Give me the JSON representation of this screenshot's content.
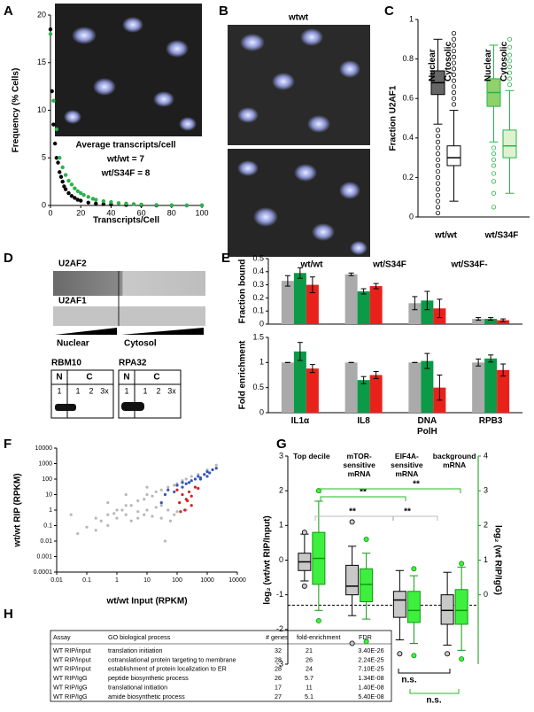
{
  "panel_labels": [
    "A",
    "B",
    "C",
    "D",
    "E",
    "F",
    "G",
    "H"
  ],
  "micrograph": {
    "label": "wtwt"
  },
  "blots": {
    "top": [
      "U2AF2",
      "U2AF1"
    ],
    "fractions": [
      "Nuclear",
      "Cytosol"
    ],
    "bottom": [
      {
        "name": "RBM10",
        "header": [
          "N",
          "C"
        ],
        "lanes": [
          "1",
          "1",
          "2",
          "3x"
        ]
      },
      {
        "name": "RPA32",
        "header": [
          "N",
          "C"
        ],
        "lanes": [
          "1",
          "1",
          "2",
          "3x"
        ]
      }
    ]
  },
  "chart_data": [
    {
      "type": "scatter",
      "ylabel": "Frequency (% Cells)",
      "xlabel": "Transcripts/Cell",
      "xlim": [
        0,
        100
      ],
      "ylim": [
        0,
        20
      ],
      "xticks": [
        0,
        20,
        40,
        60,
        80,
        100
      ],
      "yticks": [
        0,
        5,
        10,
        15,
        20
      ],
      "annotations": [
        {
          "text": "Average transcripts/cell",
          "color": "#000000"
        },
        {
          "text": "wt/wt = 7",
          "color": "#000000"
        },
        {
          "text": "wt/S34F = 8",
          "color": "#2bb24c"
        }
      ],
      "series": [
        {
          "color": "#000000",
          "x": [
            0,
            1,
            2,
            3,
            4,
            5,
            6,
            7,
            8,
            9,
            10,
            12,
            14,
            16,
            18,
            20,
            25,
            30,
            35,
            40,
            50,
            60,
            70,
            80,
            90,
            100
          ],
          "values": [
            18.5,
            12,
            8.5,
            6.5,
            5,
            4.5,
            3.5,
            3,
            2.5,
            2,
            1.7,
            1.3,
            1,
            0.8,
            0.6,
            0.5,
            0.3,
            0.2,
            0.15,
            0.1,
            0.05,
            0.03,
            0,
            0,
            0,
            0
          ]
        },
        {
          "color": "#2bb24c",
          "x": [
            0,
            2,
            4,
            6,
            8,
            10,
            12,
            14,
            16,
            18,
            20,
            22,
            25,
            28,
            30,
            35,
            40,
            45,
            50,
            55,
            60,
            70,
            80,
            90,
            100
          ],
          "values": [
            18,
            11,
            8,
            5,
            4,
            3.2,
            2.6,
            2.2,
            1.8,
            1.5,
            1.3,
            1.1,
            0.9,
            0.7,
            0.6,
            0.45,
            0.35,
            0.25,
            0.2,
            0.15,
            0.1,
            0.05,
            0.02,
            0,
            0
          ]
        }
      ]
    },
    {
      "type": "box",
      "ylabel": "Fraction U2AF1",
      "ylim": [
        0,
        1
      ],
      "yticks": [
        0,
        0.2,
        0.4,
        0.6,
        0.8,
        1
      ],
      "categories": [
        "wt/wt",
        "wt/S34F"
      ],
      "series": [
        {
          "name": "Nuclear",
          "boxes": [
            {
              "color": "#000000",
              "fill": "#666666",
              "whisker_low": 0.47,
              "q1": 0.62,
              "median": 0.68,
              "q3": 0.74,
              "whisker_high": 0.9,
              "outliers": [
                0.02,
                0.05,
                0.08,
                0.11,
                0.14,
                0.17,
                0.2,
                0.23,
                0.26,
                0.29,
                0.32,
                0.35,
                0.38,
                0.41,
                0.44
              ]
            },
            {
              "color": "#2bb24c",
              "fill": "#8fd16a",
              "whisker_low": 0.38,
              "q1": 0.56,
              "median": 0.63,
              "q3": 0.7,
              "whisker_high": 0.87,
              "outliers": [
                0.05,
                0.12,
                0.18,
                0.22,
                0.26,
                0.29,
                0.32,
                0.35
              ]
            }
          ]
        },
        {
          "name": "Cytosolic",
          "boxes": [
            {
              "color": "#000000",
              "fill": "#ffffff",
              "whisker_low": 0.08,
              "q1": 0.26,
              "median": 0.3,
              "q3": 0.36,
              "whisker_high": 0.54,
              "outliers": [
                0.57,
                0.6,
                0.63,
                0.66,
                0.69,
                0.72,
                0.75,
                0.78,
                0.81,
                0.84,
                0.87,
                0.9,
                0.93
              ]
            },
            {
              "color": "#2bb24c",
              "fill": "#dff2cf",
              "whisker_low": 0.12,
              "q1": 0.3,
              "median": 0.36,
              "q3": 0.44,
              "whisker_high": 0.64,
              "outliers": [
                0.67,
                0.7,
                0.73,
                0.76,
                0.79,
                0.82,
                0.86,
                0.9
              ]
            }
          ]
        }
      ]
    },
    {
      "type": "bar",
      "ylabel": "Fraction bound",
      "ylim": [
        0,
        0.5
      ],
      "yticks": [
        0,
        0.1,
        0.2,
        0.3,
        0.4,
        0.5
      ],
      "categories": [
        null,
        null,
        null,
        null
      ],
      "series": [
        {
          "name": "wt/wt",
          "color": "#aaaaaa",
          "values": [
            0.33,
            0.38,
            0.16,
            0.04
          ],
          "errors": [
            0.04,
            0.01,
            0.05,
            0.01
          ]
        },
        {
          "name": "wt/S34F",
          "color": "#0a9a48",
          "values": [
            0.39,
            0.25,
            0.18,
            0.04
          ],
          "errors": [
            0.04,
            0.02,
            0.07,
            0.01
          ]
        },
        {
          "name": "wt/S34F-",
          "color": "#e8221b",
          "values": [
            0.3,
            0.29,
            0.12,
            0.03
          ],
          "errors": [
            0.06,
            0.02,
            0.07,
            0.01
          ]
        }
      ]
    },
    {
      "type": "bar",
      "ylabel": "Fold enrichment",
      "ylim": [
        0,
        1.5
      ],
      "yticks": [
        0,
        0.5,
        1,
        1.5
      ],
      "categories": [
        "IL1α",
        "IL8",
        "DNA PolH",
        "RPB3"
      ],
      "series": [
        {
          "color": "#aaaaaa",
          "values": [
            1,
            1,
            1,
            1
          ],
          "errors": [
            0,
            0,
            0,
            0.07
          ]
        },
        {
          "color": "#0a9a48",
          "values": [
            1.22,
            0.65,
            1.03,
            1.08
          ],
          "errors": [
            0.18,
            0.07,
            0.15,
            0.07
          ]
        },
        {
          "color": "#e8221b",
          "values": [
            0.88,
            0.75,
            0.5,
            0.85
          ],
          "errors": [
            0.08,
            0.07,
            0.25,
            0.12
          ]
        }
      ]
    },
    {
      "type": "scatter",
      "log_x": true,
      "log_y": true,
      "ylabel": "wt/wt RIP (RPKM)",
      "xlabel": "wt/wt Input (RPKM)",
      "xlim": [
        0.01,
        10000
      ],
      "ylim": [
        0.0001,
        10000
      ],
      "xticks": [
        0.01,
        0.1,
        1,
        10,
        100,
        1000,
        10000
      ],
      "yticks": [
        0.0001,
        0.001,
        0.01,
        0.1,
        1,
        10,
        100,
        1000,
        10000
      ],
      "series": [
        {
          "color": "#b8b8b8",
          "x": [
            0.05,
            0.1,
            0.2,
            0.3,
            0.5,
            0.8,
            1,
            1.5,
            2,
            3,
            5,
            8,
            10,
            15,
            20,
            30,
            50,
            80,
            100,
            150,
            200,
            300,
            500,
            1000,
            2000,
            0.2,
            0.5,
            1,
            2,
            5,
            10,
            20,
            30,
            50,
            80,
            100,
            200,
            3,
            5,
            8,
            15,
            30,
            60,
            0.03,
            0.5,
            2,
            10,
            40
          ],
          "values": [
            0.03,
            0.08,
            0.3,
            0.2,
            0.5,
            0.6,
            1,
            1,
            2,
            2,
            4,
            5,
            10,
            8,
            15,
            20,
            30,
            40,
            50,
            80,
            100,
            150,
            200,
            400,
            800,
            0.05,
            0.1,
            0.3,
            0.5,
            0.8,
            1,
            1.5,
            2,
            1,
            0.5,
            0.8,
            1,
            0.2,
            0.3,
            0.5,
            0.4,
            0.3,
            0.2,
            0.5,
            3,
            10,
            30,
            0.01
          ]
        },
        {
          "color": "#3355bb",
          "x": [
            100,
            150,
            200,
            300,
            400,
            500,
            600,
            800,
            1000,
            1200,
            1500,
            2000,
            50,
            80,
            30,
            40,
            150,
            600,
            250,
            1000
          ],
          "values": [
            40,
            60,
            50,
            80,
            100,
            150,
            120,
            200,
            300,
            250,
            400,
            500,
            20,
            15,
            3,
            10,
            30,
            100,
            60,
            150
          ]
        },
        {
          "color": "#d62020",
          "x": [
            100,
            150,
            200,
            300,
            120,
            250,
            400,
            180,
            500,
            220,
            130,
            300
          ],
          "values": [
            20,
            10,
            5,
            8,
            3,
            15,
            30,
            1,
            25,
            4,
            0.8,
            2
          ]
        }
      ]
    },
    {
      "type": "box",
      "ylabel": "log₂ (wt/wt RIP/Input)",
      "y2label": "log₂ (wt RIP/IgG)",
      "ylim": [
        -3,
        3
      ],
      "yticks": [
        -3,
        -2,
        -1,
        0,
        1,
        2,
        3
      ],
      "y2lim": [
        -2,
        4
      ],
      "y2ticks": [
        0,
        1,
        2,
        3,
        4
      ],
      "categories": [
        "Top decile",
        "mTOR-sensitive mRNA",
        "EIF4A-sensitive mRNA",
        "background mRNA"
      ],
      "reference_line": -1.3,
      "annotations": [
        {
          "text": "**",
          "color": "#22bb22"
        },
        {
          "text": "**",
          "color": "#22bb22"
        },
        {
          "text": "**",
          "color": "#999999"
        },
        {
          "text": "**",
          "color": "#bbbbbb"
        },
        {
          "text": "n.s.",
          "color": "#000000"
        },
        {
          "text": "n.s.",
          "color": "#22bb22"
        }
      ],
      "series": [
        {
          "color": "#000000",
          "fill": "#c8c8c8",
          "boxes": [
            {
              "whisker_low": -0.6,
              "q1": -0.3,
              "median": -0.05,
              "q3": 0.2,
              "whisker_high": 0.75,
              "outliers": [
                0.8,
                -0.75
              ]
            },
            {
              "whisker_low": -1.6,
              "q1": -1.0,
              "median": -0.75,
              "q3": -0.15,
              "whisker_high": 0.4,
              "outliers": [
                1.1,
                -2.4
              ]
            },
            {
              "whisker_low": -2.3,
              "q1": -1.65,
              "median": -1.15,
              "q3": -0.9,
              "whisker_high": -0.3,
              "outliers": [
                -2.7
              ]
            },
            {
              "whisker_low": -2.45,
              "q1": -1.85,
              "median": -1.45,
              "q3": -1.0,
              "whisker_high": -0.35,
              "outliers": [
                -2.7
              ]
            }
          ]
        },
        {
          "axis": "y2",
          "color": "#119911",
          "fill": "#3df03d",
          "boxes": [
            {
              "whisker_low": -0.45,
              "q1": 0.3,
              "median": 1.05,
              "q3": 1.8,
              "whisker_high": 2.7,
              "outliers": [
                3.0,
                -0.75
              ]
            },
            {
              "whisker_low": -0.7,
              "q1": -0.2,
              "median": 0.3,
              "q3": 0.75,
              "whisker_high": 1.2,
              "outliers": [
                1.6,
                -1.35
              ]
            },
            {
              "whisker_low": -1.4,
              "q1": -0.8,
              "median": -0.45,
              "q3": 0.1,
              "whisker_high": 0.55,
              "outliers": [
                0.75,
                -1.75
              ]
            },
            {
              "whisker_low": -1.6,
              "q1": -0.85,
              "median": -0.45,
              "q3": 0.15,
              "whisker_high": 0.8,
              "outliers": [
                0.9,
                -1.85
              ]
            }
          ]
        }
      ]
    }
  ],
  "table": {
    "header": [
      "Assay",
      "GO biological process",
      "# genes",
      "fold-enrichment",
      "FDR"
    ],
    "rows": [
      [
        "WT RIP/input",
        "translation initiation",
        "32",
        "21",
        "3.40E-26"
      ],
      [
        "WT RIP/input",
        "cotranslational protein targeting to membrane",
        "28",
        "26",
        "2.24E-25"
      ],
      [
        "WT RIP/input",
        "establishment of protein localization to ER",
        "28",
        "24",
        "7.10E-25"
      ],
      [
        "WT RIP/IgG",
        "peptide biosynthetic process",
        "26",
        "5.7",
        "1.34E-08"
      ],
      [
        "WT RIP/IgG",
        "translational initiation",
        "17",
        "11",
        "1.40E-08"
      ],
      [
        "WT RIP/IgG",
        "amide biosynthetic process",
        "27",
        "5.1",
        "5.40E-08"
      ]
    ]
  }
}
